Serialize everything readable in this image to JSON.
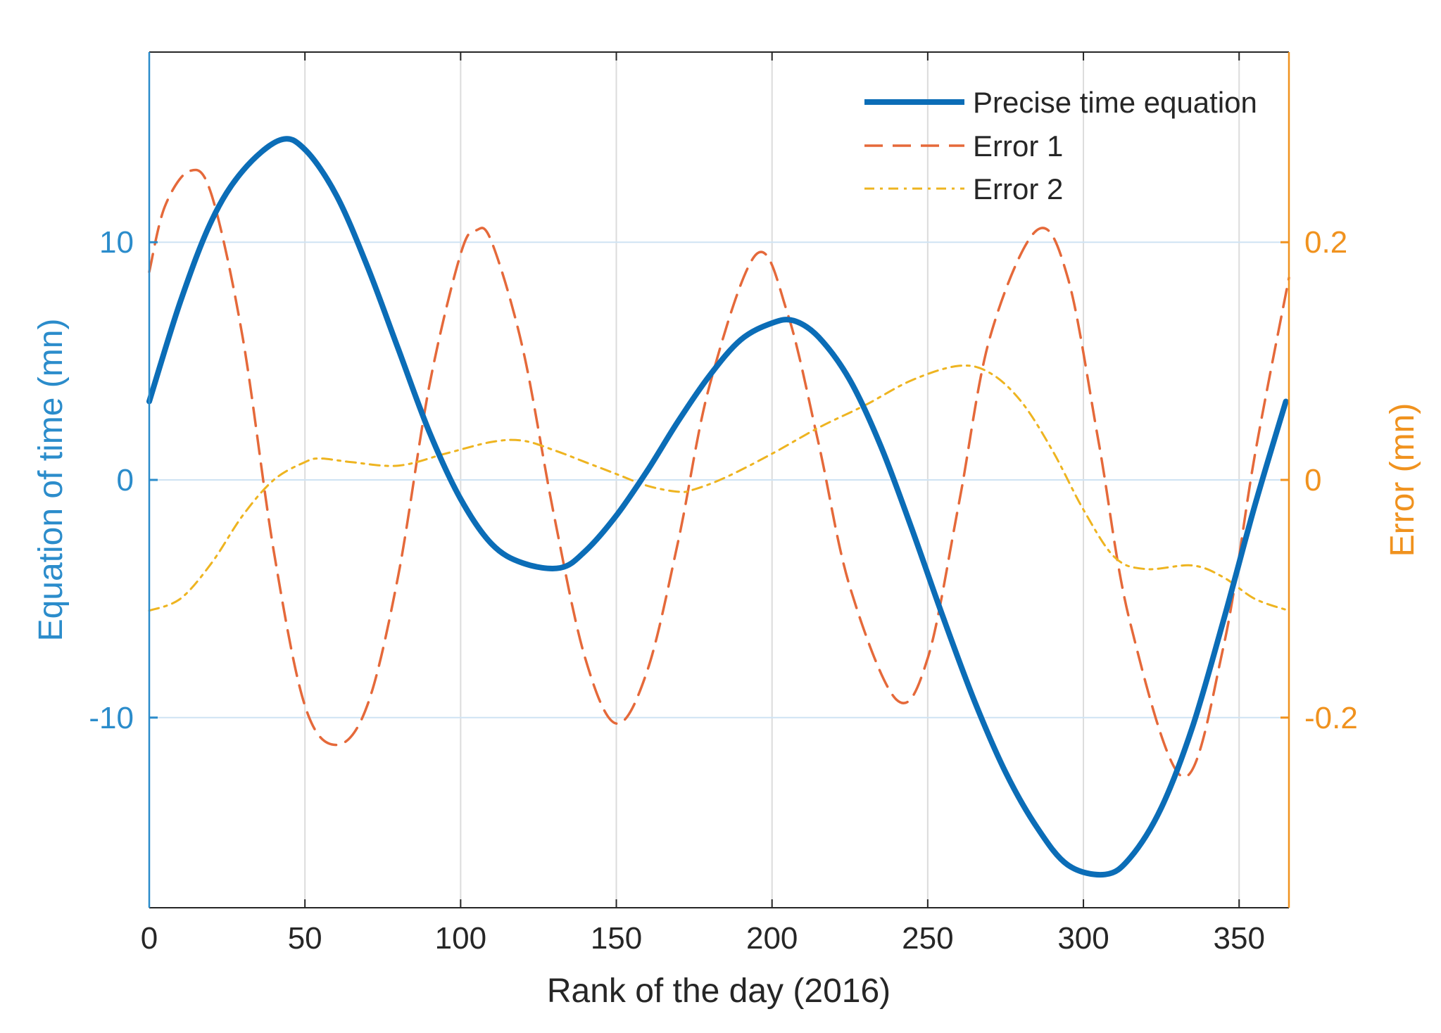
{
  "chart_data": {
    "type": "line",
    "title": "",
    "xlabel": "Rank of the day (2016)",
    "ylabel_left": "Equation of time (mn)",
    "ylabel_right": "Error (mn)",
    "xlim": [
      0,
      366
    ],
    "ylim_left": [
      -18,
      18
    ],
    "ylim_right": [
      -0.36,
      0.36
    ],
    "x_ticks": [
      0,
      50,
      100,
      150,
      200,
      250,
      300,
      350
    ],
    "x_tick_labels": [
      "0",
      "50",
      "100",
      "150",
      "200",
      "250",
      "300",
      "350"
    ],
    "y_ticks_left": [
      -10,
      0,
      10
    ],
    "y_tick_labels_left": [
      "-10",
      "0",
      "10"
    ],
    "y_ticks_right": [
      -0.2,
      0,
      0.2
    ],
    "y_tick_labels_right": [
      "-0.2",
      "0",
      "0.2"
    ],
    "grid": true,
    "legend_position": "top-right",
    "colors": {
      "left_axis": "#2b8ccb",
      "right_axis": "#f0921e",
      "grid": "#cfe3f3",
      "axis_frame": "#262626"
    },
    "series": [
      {
        "name": "Precise time equation",
        "axis": "left",
        "color": "#0b6db7",
        "style": "solid",
        "x": [
          0,
          10,
          20,
          30,
          42,
          50,
          60,
          70,
          80,
          90,
          100,
          110,
          120,
          132,
          140,
          150,
          160,
          170,
          180,
          190,
          200,
          207,
          215,
          225,
          235,
          245,
          255,
          265,
          275,
          285,
          295,
          307,
          315,
          325,
          335,
          345,
          355,
          365
        ],
        "y": [
          3.3,
          7.5,
          10.9,
          13.0,
          14.3,
          13.9,
          12.0,
          9.0,
          5.5,
          2.0,
          -0.8,
          -2.7,
          -3.5,
          -3.7,
          -3.0,
          -1.5,
          0.4,
          2.5,
          4.4,
          5.9,
          6.6,
          6.7,
          6.0,
          4.2,
          1.4,
          -2.1,
          -5.8,
          -9.3,
          -12.3,
          -14.6,
          -16.2,
          -16.6,
          -15.9,
          -13.8,
          -10.4,
          -5.9,
          -1.1,
          3.3
        ]
      },
      {
        "name": "Error 1",
        "axis": "right",
        "color": "#e5693a",
        "style": "dashed",
        "x": [
          0,
          5,
          13,
          20,
          30,
          40,
          50,
          60,
          70,
          80,
          90,
          100,
          105,
          110,
          120,
          130,
          140,
          150,
          160,
          170,
          180,
          195,
          205,
          215,
          225,
          240,
          250,
          260,
          270,
          285,
          295,
          305,
          315,
          332,
          345,
          355,
          366
        ],
        "y": [
          0.175,
          0.23,
          0.26,
          0.24,
          0.12,
          -0.06,
          -0.19,
          -0.223,
          -0.19,
          -0.08,
          0.08,
          0.19,
          0.21,
          0.2,
          0.11,
          -0.03,
          -0.15,
          -0.205,
          -0.16,
          -0.05,
          0.08,
          0.19,
          0.14,
          0.03,
          -0.09,
          -0.185,
          -0.15,
          -0.02,
          0.12,
          0.21,
          0.17,
          0.03,
          -0.12,
          -0.25,
          -0.14,
          0.02,
          0.17
        ]
      },
      {
        "name": "Error 2",
        "axis": "right",
        "color": "#eeb420",
        "style": "dash-dot",
        "x": [
          0,
          10,
          20,
          30,
          40,
          50,
          55,
          65,
          80,
          95,
          110,
          120,
          130,
          140,
          150,
          160,
          170,
          175,
          185,
          200,
          215,
          230,
          245,
          260,
          270,
          280,
          290,
          300,
          310,
          320,
          335,
          345,
          355,
          366
        ],
        "y": [
          -0.11,
          -0.1,
          -0.07,
          -0.03,
          0.0,
          0.015,
          0.018,
          0.015,
          0.012,
          0.022,
          0.032,
          0.033,
          0.025,
          0.015,
          0.005,
          -0.005,
          -0.01,
          -0.008,
          0.002,
          0.022,
          0.044,
          0.063,
          0.084,
          0.096,
          0.09,
          0.066,
          0.025,
          -0.025,
          -0.065,
          -0.075,
          -0.072,
          -0.082,
          -0.1,
          -0.11
        ]
      }
    ]
  }
}
